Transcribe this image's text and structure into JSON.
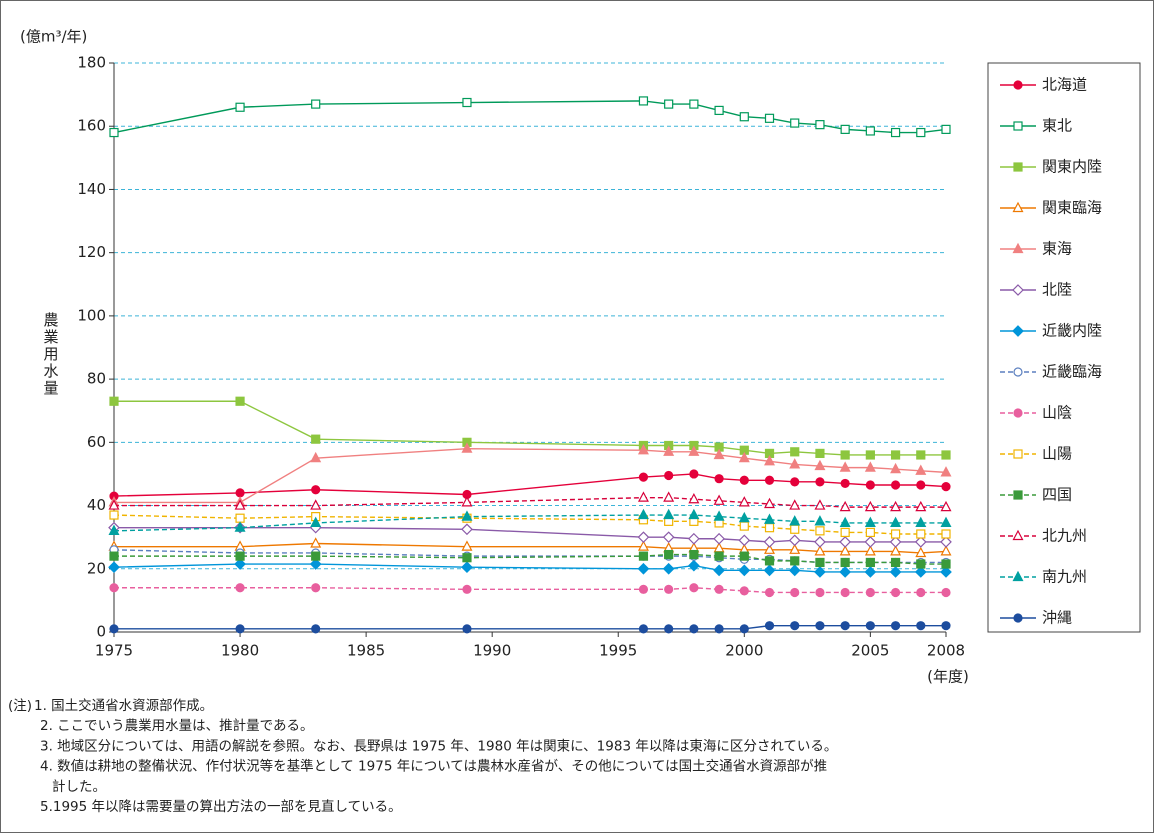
{
  "chart_data": {
    "type": "line",
    "y_unit": "(億m³/年)",
    "y_label": "農業用水量",
    "x_unit": "(年度)",
    "x": [
      1975,
      1980,
      1983,
      1989,
      1996,
      1997,
      1998,
      1999,
      2000,
      2001,
      2002,
      2003,
      2004,
      2005,
      2006,
      2007,
      2008
    ],
    "xlim": [
      1975,
      2008
    ],
    "xticks": [
      1975,
      1980,
      1985,
      1990,
      1995,
      2000,
      2005,
      2008
    ],
    "ylim": [
      0,
      180
    ],
    "yticks": [
      0,
      20,
      40,
      60,
      80,
      100,
      120,
      140,
      160,
      180
    ],
    "grid": true,
    "legend": "right",
    "series": [
      {
        "name": "北海道",
        "color": "#e4003a",
        "dash": false,
        "marker": "circle",
        "filled": true,
        "values": [
          43,
          44,
          45,
          43.5,
          49,
          49.5,
          50,
          48.5,
          48,
          48,
          47.5,
          47.5,
          47,
          46.5,
          46.5,
          46.5,
          46
        ]
      },
      {
        "name": "東北",
        "color": "#009a5a",
        "dash": false,
        "marker": "square",
        "filled": false,
        "values": [
          158,
          166,
          167,
          167.5,
          168,
          167,
          167,
          165,
          163,
          162.5,
          161,
          160.5,
          159,
          158.5,
          158,
          158,
          159
        ]
      },
      {
        "name": "関東内陸",
        "color": "#8dc63f",
        "dash": false,
        "marker": "square",
        "filled": true,
        "values": [
          73,
          73,
          61,
          60,
          59,
          59,
          59,
          58.5,
          57.5,
          56.5,
          57,
          56.5,
          56,
          56,
          56,
          56,
          56
        ]
      },
      {
        "name": "関東臨海",
        "color": "#ee7800",
        "dash": false,
        "marker": "triangle",
        "filled": false,
        "values": [
          27,
          27,
          28,
          27,
          27,
          26.5,
          26.5,
          26.5,
          26,
          26,
          26,
          25.5,
          25.5,
          25.5,
          25.5,
          25,
          25.5
        ]
      },
      {
        "name": "東海",
        "color": "#f08080",
        "dash": false,
        "marker": "triangle",
        "filled": true,
        "values": [
          41,
          41,
          55,
          58,
          57.5,
          57,
          57,
          56,
          55,
          54,
          53,
          52.5,
          52,
          52,
          51.5,
          51,
          50.5
        ]
      },
      {
        "name": "北陸",
        "color": "#8a5aa8",
        "dash": false,
        "marker": "diamond",
        "filled": false,
        "values": [
          33,
          33,
          33,
          32.5,
          30,
          30,
          29.5,
          29.5,
          29,
          28.5,
          29,
          28.5,
          28.5,
          28.5,
          28.5,
          28.5,
          28.5
        ]
      },
      {
        "name": "近畿内陸",
        "color": "#0095d9",
        "dash": false,
        "marker": "diamond",
        "filled": true,
        "values": [
          20.5,
          21.5,
          21.5,
          20.5,
          20,
          20,
          21,
          19.5,
          19.5,
          19.5,
          19.5,
          19,
          19,
          19,
          19,
          19,
          19
        ]
      },
      {
        "name": "近畿臨海",
        "color": "#5b7fbf",
        "dash": true,
        "marker": "circle",
        "filled": false,
        "values": [
          26,
          25,
          25,
          24,
          24,
          24,
          24,
          23.5,
          23,
          23,
          22.5,
          22,
          22,
          22,
          22,
          22,
          22
        ]
      },
      {
        "name": "山陰",
        "color": "#e85f9e",
        "dash": true,
        "marker": "circle",
        "filled": true,
        "values": [
          14,
          14,
          14,
          13.5,
          13.5,
          13.5,
          14,
          13.5,
          13,
          12.5,
          12.5,
          12.5,
          12.5,
          12.5,
          12.5,
          12.5,
          12.5
        ]
      },
      {
        "name": "山陽",
        "color": "#f0b400",
        "dash": true,
        "marker": "square",
        "filled": false,
        "values": [
          37,
          36,
          36.5,
          36,
          35.5,
          35,
          35,
          34.5,
          33.5,
          33,
          32.5,
          32,
          31.5,
          31.5,
          31,
          31,
          31
        ]
      },
      {
        "name": "四国",
        "color": "#3a9a3a",
        "dash": true,
        "marker": "square",
        "filled": true,
        "values": [
          24,
          24,
          24,
          23.5,
          24,
          24.5,
          24.5,
          24,
          24,
          22.5,
          22.5,
          22,
          22,
          22,
          22,
          21.5,
          21.5
        ]
      },
      {
        "name": "北九州",
        "color": "#d7003a",
        "dash": true,
        "marker": "triangle",
        "filled": false,
        "values": [
          40,
          40,
          40,
          41,
          42.5,
          42.5,
          42,
          41.5,
          41,
          40.5,
          40,
          40,
          39.5,
          39.5,
          39.5,
          39.5,
          39.5
        ]
      },
      {
        "name": "南九州",
        "color": "#00a0a0",
        "dash": true,
        "marker": "triangle",
        "filled": true,
        "values": [
          32,
          33,
          34.5,
          36.5,
          37,
          37,
          37,
          36.5,
          36,
          35.5,
          35,
          35,
          34.5,
          34.5,
          34.5,
          34.5,
          34.5
        ]
      },
      {
        "name": "沖縄",
        "color": "#1d4d9e",
        "dash": false,
        "marker": "circle",
        "filled": true,
        "values": [
          1,
          1,
          1,
          1,
          1,
          1,
          1,
          1,
          1,
          2,
          2,
          2,
          2,
          2,
          2,
          2,
          2
        ]
      }
    ]
  },
  "notes": {
    "label": "(注)",
    "lines": [
      "1. 国土交通省水資源部作成。",
      "2. ここでいう農業用水量は、推計量である。",
      "3. 地域区分については、用語の解説を参照。なお、長野県は 1975 年、1980 年は関東に、1983 年以降は東海に区分されている。",
      "4. 数値は耕地の整備状況、作付状況等を基準として 1975 年については農林水産省が、その他については国土交通省水資源部が推",
      "計した。",
      "5.1995 年以降は需要量の算出方法の一部を見直している。"
    ]
  }
}
